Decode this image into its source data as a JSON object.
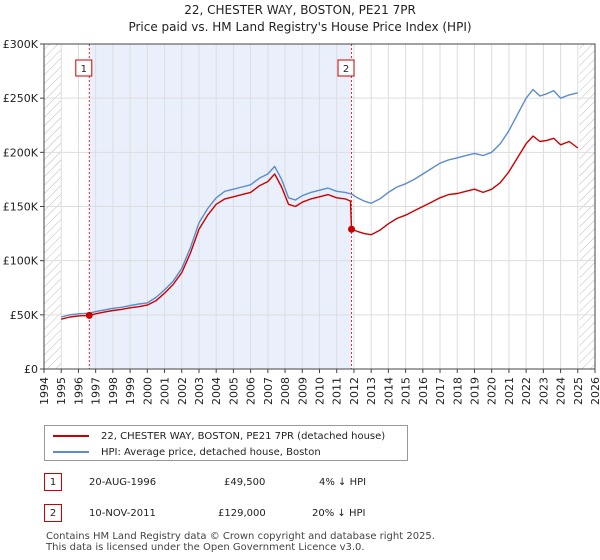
{
  "chart_data": {
    "type": "line",
    "title": "22, CHESTER WAY, BOSTON, PE21 7PR",
    "subtitle": "Price paid vs. HM Land Registry's House Price Index (HPI)",
    "xlabel": "",
    "ylabel": "",
    "xlim": [
      1994,
      2026
    ],
    "ylim": [
      0,
      300000
    ],
    "y_ticks": [
      0,
      50000,
      100000,
      150000,
      200000,
      250000,
      300000
    ],
    "y_tick_labels": [
      "£0",
      "£50K",
      "£100K",
      "£150K",
      "£200K",
      "£250K",
      "£300K"
    ],
    "x_ticks": [
      "1994",
      "1995",
      "1996",
      "1997",
      "1998",
      "1999",
      "2000",
      "2001",
      "2002",
      "2003",
      "2004",
      "2005",
      "2006",
      "2007",
      "2008",
      "2009",
      "2010",
      "2011",
      "2012",
      "2013",
      "2014",
      "2015",
      "2016",
      "2017",
      "2018",
      "2019",
      "2020",
      "2021",
      "2022",
      "2023",
      "2024",
      "2025",
      "2026"
    ],
    "grid": true,
    "hatched_ranges": [
      [
        1994,
        1995.0
      ],
      [
        2025.1,
        2026
      ]
    ],
    "shaded_range": [
      1996.63,
      2011.86
    ],
    "colors": {
      "price": "#cc0000",
      "hpi": "#5b8ccc",
      "marker_line": "#cc0000",
      "shade": "#eaf0fb"
    },
    "series": [
      {
        "name": "HPI: Average price, detached house, Boston",
        "x": [
          1995.0,
          1995.5,
          1996.0,
          1996.63,
          1997.0,
          1997.5,
          1998.0,
          1998.5,
          1999.0,
          1999.5,
          2000.0,
          2000.5,
          2001.0,
          2001.5,
          2002.0,
          2002.5,
          2003.0,
          2003.5,
          2004.0,
          2004.5,
          2005.0,
          2005.5,
          2006.0,
          2006.5,
          2007.0,
          2007.4,
          2007.8,
          2008.2,
          2008.6,
          2009.0,
          2009.5,
          2010.0,
          2010.5,
          2011.0,
          2011.5,
          2011.86,
          2012.2,
          2012.6,
          2013.0,
          2013.5,
          2014.0,
          2014.5,
          2015.0,
          2015.5,
          2016.0,
          2016.5,
          2017.0,
          2017.5,
          2018.0,
          2018.5,
          2019.0,
          2019.5,
          2020.0,
          2020.5,
          2021.0,
          2021.5,
          2022.0,
          2022.4,
          2022.8,
          2023.2,
          2023.6,
          2024.0,
          2024.5,
          2025.0
        ],
        "values": [
          48000,
          50000,
          51000,
          51500,
          53000,
          54500,
          56000,
          57000,
          58500,
          60000,
          61000,
          66000,
          73000,
          81000,
          93000,
          112000,
          135000,
          148000,
          158000,
          164000,
          166000,
          168000,
          170000,
          176000,
          180000,
          187000,
          175000,
          158000,
          156000,
          160000,
          163000,
          165000,
          167000,
          164000,
          163000,
          161500,
          158000,
          155000,
          153000,
          157000,
          163000,
          168000,
          171000,
          175000,
          180000,
          185000,
          190000,
          193000,
          195000,
          197000,
          199000,
          197000,
          200000,
          208000,
          220000,
          235000,
          250000,
          258000,
          252000,
          254000,
          257000,
          250000,
          253000,
          255000
        ]
      },
      {
        "name": "22, CHESTER WAY, BOSTON, PE21 7PR (detached house)",
        "x": [
          1995.0,
          1995.5,
          1996.0,
          1996.63,
          1997.0,
          1997.5,
          1998.0,
          1998.5,
          1999.0,
          1999.5,
          2000.0,
          2000.5,
          2001.0,
          2001.5,
          2002.0,
          2002.5,
          2003.0,
          2003.5,
          2004.0,
          2004.5,
          2005.0,
          2005.5,
          2006.0,
          2006.5,
          2007.0,
          2007.4,
          2007.8,
          2008.2,
          2008.6,
          2009.0,
          2009.5,
          2010.0,
          2010.5,
          2011.0,
          2011.5,
          2011.8,
          2011.86,
          2012.2,
          2012.6,
          2013.0,
          2013.5,
          2014.0,
          2014.5,
          2015.0,
          2015.5,
          2016.0,
          2016.5,
          2017.0,
          2017.5,
          2018.0,
          2018.5,
          2019.0,
          2019.5,
          2020.0,
          2020.5,
          2021.0,
          2021.5,
          2022.0,
          2022.4,
          2022.8,
          2023.2,
          2023.6,
          2024.0,
          2024.5,
          2025.0
        ],
        "values": [
          46000,
          48000,
          49000,
          49500,
          51000,
          52500,
          54000,
          55000,
          56500,
          57500,
          59000,
          63000,
          70000,
          78000,
          89000,
          107000,
          129000,
          142000,
          152000,
          157000,
          159000,
          161000,
          163000,
          169000,
          173000,
          180000,
          168000,
          152000,
          150000,
          154000,
          157000,
          159000,
          161000,
          158000,
          157000,
          155000,
          129000,
          127000,
          125000,
          124000,
          128000,
          134000,
          139000,
          142000,
          146000,
          150000,
          154000,
          158000,
          161000,
          162000,
          164000,
          166000,
          163000,
          166000,
          172000,
          182000,
          195000,
          208000,
          215000,
          210000,
          211000,
          213000,
          207000,
          210000,
          204000
        ]
      }
    ],
    "sales": [
      {
        "label": "1",
        "x": 1996.63,
        "price": 49500,
        "date": "20-AUG-1996",
        "price_text": "£49,500",
        "hpi_text": "4% ↓ HPI"
      },
      {
        "label": "2",
        "x": 2011.86,
        "price": 129000,
        "date": "10-NOV-2011",
        "price_text": "£129,000",
        "hpi_text": "20% ↓ HPI"
      }
    ]
  },
  "legend": {
    "price_label": "22, CHESTER WAY, BOSTON, PE21 7PR (detached house)",
    "hpi_label": "HPI: Average price, detached house, Boston"
  },
  "footer": {
    "line1": "Contains HM Land Registry data © Crown copyright and database right 2025.",
    "line2": "This data is licensed under the Open Government Licence v3.0."
  }
}
